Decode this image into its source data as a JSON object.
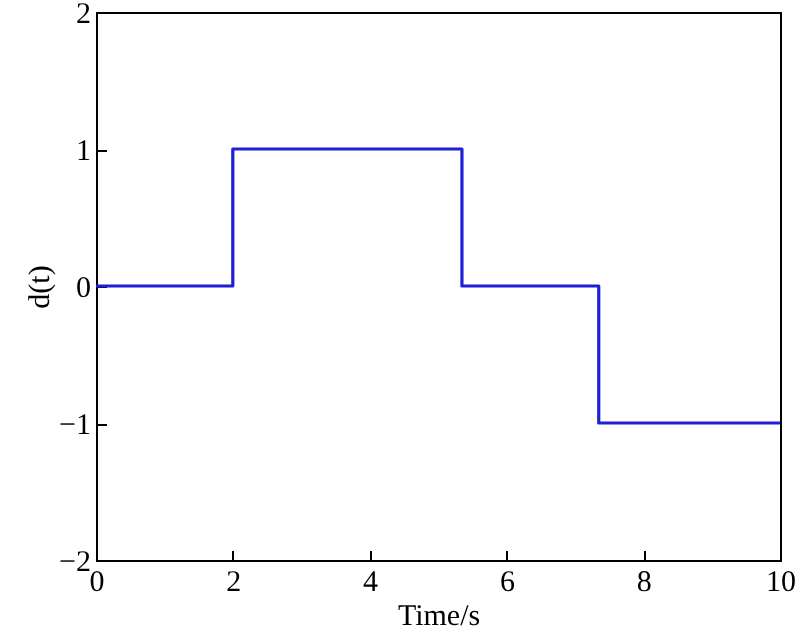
{
  "chart_data": {
    "type": "step",
    "xlabel": "Time/s",
    "ylabel": "d(t)",
    "x": [
      0,
      2,
      5.35,
      7.35,
      10
    ],
    "series": [
      {
        "color": "#1f1fd6",
        "values": [
          0,
          1,
          0,
          -1,
          -1
        ]
      }
    ],
    "xlim": [
      0,
      10
    ],
    "xticks": [
      0,
      2,
      4,
      6,
      8,
      10
    ],
    "ylim": [
      -2,
      2
    ],
    "yticks": [
      -2,
      -1,
      0,
      1,
      2
    ],
    "grid": false
  }
}
